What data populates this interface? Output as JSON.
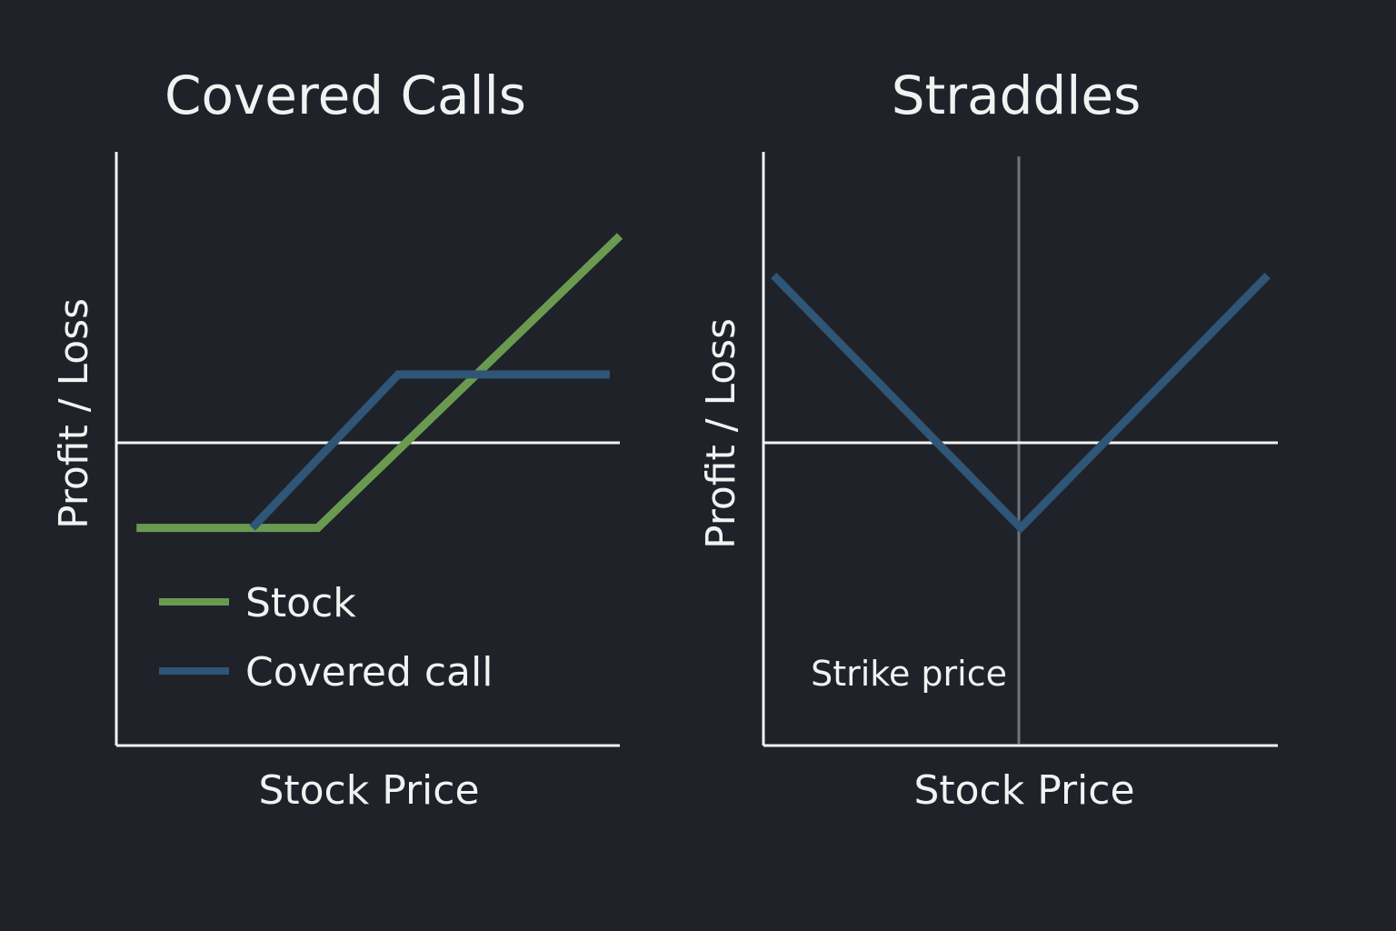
{
  "colors": {
    "background": "#1f2229",
    "axis": "#f2f2f2",
    "text": "#f2f2f2",
    "stock": "#6a9a50",
    "covered_call": "#2f5577",
    "strike_line": "#70757c"
  },
  "chart_data": [
    {
      "type": "line",
      "title": "Covered Calls",
      "xlabel": "Stock Price",
      "ylabel": "Profit / Loss",
      "xlim": [
        0,
        100
      ],
      "ylim": [
        -60,
        60
      ],
      "zero_line": 0,
      "legend": "bottom-left",
      "series": [
        {
          "name": "Stock",
          "color": "#6a9a50",
          "x": [
            4,
            40,
            100
          ],
          "y": [
            -16,
            -16,
            43
          ]
        },
        {
          "name": "Covered call",
          "color": "#2f5577",
          "x": [
            27,
            56,
            98
          ],
          "y": [
            -16,
            15,
            15
          ]
        }
      ]
    },
    {
      "type": "line",
      "title": "Straddles",
      "xlabel": "Stock Price",
      "ylabel": "Profit / Loss",
      "xlim": [
        0,
        100
      ],
      "ylim": [
        -60,
        60
      ],
      "zero_line": 0,
      "annotations": [
        {
          "text": "Strike price",
          "x": 50
        }
      ],
      "series": [
        {
          "name": "",
          "color": "#2f5577",
          "x": [
            2,
            50,
            98
          ],
          "y": [
            35,
            -16,
            35
          ]
        }
      ]
    }
  ]
}
